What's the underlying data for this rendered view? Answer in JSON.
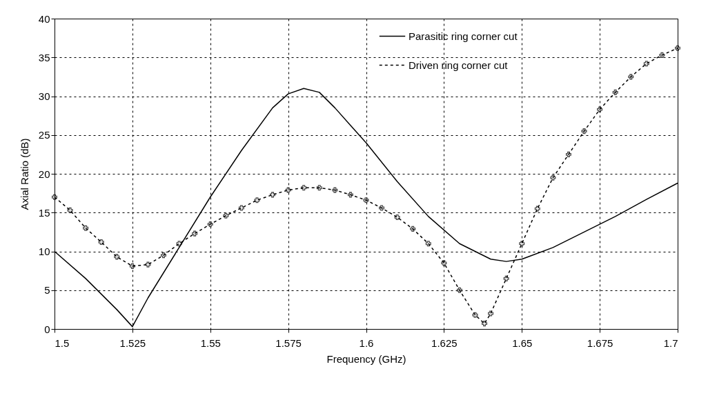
{
  "chart_data": {
    "type": "line",
    "xlabel": "Frequency (GHz)",
    "ylabel": "Axial Ratio (dB)",
    "xlim": [
      1.5,
      1.7
    ],
    "xticks": [
      1.5,
      1.525,
      1.55,
      1.575,
      1.6,
      1.625,
      1.65,
      1.675,
      1.7
    ],
    "ylim": [
      0,
      40
    ],
    "yticks": [
      0,
      5,
      10,
      15,
      20,
      25,
      30,
      35,
      40
    ],
    "grid": true,
    "legend": "top right",
    "series": [
      {
        "name": "Parasitic ring corner cut",
        "color": "#000000",
        "marker": "none",
        "line_style": "solid",
        "x": [
          1.5,
          1.51,
          1.52,
          1.525,
          1.53,
          1.54,
          1.55,
          1.56,
          1.57,
          1.575,
          1.58,
          1.585,
          1.59,
          1.6,
          1.61,
          1.62,
          1.63,
          1.64,
          1.645,
          1.65,
          1.66,
          1.67,
          1.68,
          1.69,
          1.7
        ],
        "values": [
          10,
          6.5,
          2.5,
          0.3,
          4,
          10.5,
          17,
          23,
          28.5,
          30.3,
          31,
          30.5,
          28.5,
          24,
          19,
          14.5,
          11,
          9,
          8.7,
          9,
          10.5,
          12.5,
          14.5,
          16.7,
          18.8
        ]
      },
      {
        "name": "Driven ring corner cut",
        "color": "#000000",
        "marker": "cross",
        "line_style": "dashed",
        "x": [
          1.5,
          1.505,
          1.51,
          1.515,
          1.52,
          1.525,
          1.53,
          1.535,
          1.54,
          1.545,
          1.55,
          1.555,
          1.56,
          1.565,
          1.57,
          1.575,
          1.58,
          1.585,
          1.59,
          1.595,
          1.6,
          1.605,
          1.61,
          1.615,
          1.62,
          1.625,
          1.63,
          1.635,
          1.638,
          1.64,
          1.645,
          1.65,
          1.655,
          1.66,
          1.665,
          1.67,
          1.675,
          1.68,
          1.685,
          1.69,
          1.695,
          1.7
        ],
        "values": [
          17,
          15.3,
          13,
          11.2,
          9.3,
          8.1,
          8.3,
          9.5,
          11,
          12.3,
          13.5,
          14.6,
          15.6,
          16.6,
          17.3,
          17.9,
          18.2,
          18.2,
          17.9,
          17.3,
          16.6,
          15.6,
          14.4,
          12.9,
          11,
          8.5,
          5,
          1.8,
          0.7,
          2,
          6.5,
          11,
          15.5,
          19.5,
          22.5,
          25.5,
          28.3,
          30.5,
          32.5,
          34.2,
          35.3,
          36.2
        ]
      }
    ]
  }
}
